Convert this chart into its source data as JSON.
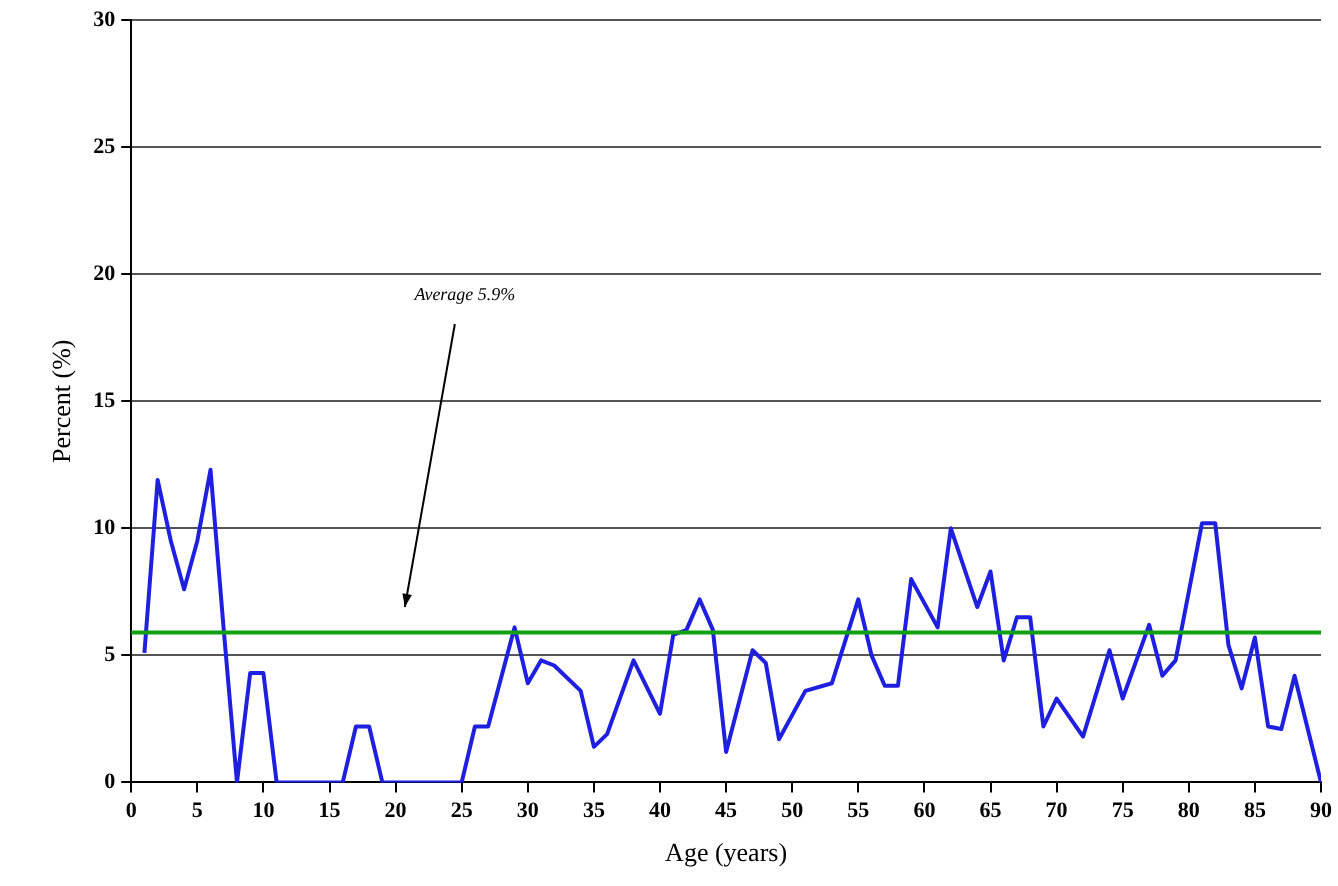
{
  "chart_data": {
    "type": "line",
    "xlabel": "Age (years)",
    "ylabel": "Percent (%)",
    "xlim": [
      0,
      90
    ],
    "xticks": [
      0,
      5,
      10,
      15,
      20,
      25,
      30,
      35,
      40,
      45,
      50,
      55,
      60,
      65,
      70,
      75,
      80,
      85,
      90
    ],
    "ylim": [
      0,
      30
    ],
    "yticks": [
      0,
      5,
      10,
      15,
      20,
      25,
      30
    ],
    "grid": "y",
    "legend": false,
    "marker": "none",
    "series": [
      {
        "color": "#1f1fe0",
        "x": [
          1,
          2,
          3,
          4,
          5,
          6,
          7,
          8,
          9,
          10,
          11,
          16,
          17,
          18,
          19,
          25,
          26,
          27,
          29,
          30,
          31,
          32,
          34,
          35,
          36,
          38,
          40,
          41,
          42,
          43,
          44,
          45,
          47,
          48,
          49,
          51,
          53,
          55,
          56,
          57,
          58,
          59,
          61,
          62,
          64,
          65,
          66,
          67,
          68,
          69,
          70,
          72,
          74,
          75,
          77,
          78,
          79,
          81,
          82,
          83,
          84,
          85,
          86,
          87,
          88,
          90
        ],
        "values": [
          5.1,
          11.9,
          9.5,
          7.6,
          9.5,
          12.3,
          6,
          0,
          4.3,
          4.3,
          0,
          0,
          2.2,
          2.2,
          0,
          0,
          2.2,
          2.2,
          6.1,
          3.9,
          4.8,
          4.6,
          3.6,
          1.4,
          1.9,
          4.8,
          2.7,
          5.8,
          6,
          7.2,
          6,
          1.2,
          5.2,
          4.7,
          1.7,
          3.6,
          3.9,
          7.2,
          5,
          3.8,
          3.8,
          8,
          6.1,
          10,
          6.9,
          8.3,
          4.8,
          6.5,
          6.5,
          2.2,
          3.3,
          1.8,
          5.2,
          3.3,
          6.2,
          4.2,
          4.8,
          10.2,
          10.2,
          5.4,
          3.7,
          5.7,
          2.2,
          2.1,
          4.2,
          0
        ]
      }
    ],
    "ref_lines": [
      {
        "axis": "y",
        "value": 5.9,
        "color": "#10a010"
      }
    ],
    "annotations": [
      "Average 5.9%"
    ]
  }
}
